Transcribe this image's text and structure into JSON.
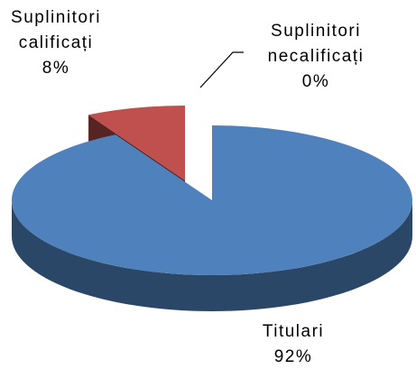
{
  "chart_data": {
    "type": "pie",
    "categories": [
      "Titulari",
      "Suplinitori calificați",
      "Suplinitori necalificați"
    ],
    "values": [
      92,
      8,
      0
    ],
    "value_labels": [
      "92%",
      "8%",
      "0%"
    ],
    "colors": [
      "#4f81bd",
      "#c0504d",
      "#9bbb59"
    ]
  }
}
